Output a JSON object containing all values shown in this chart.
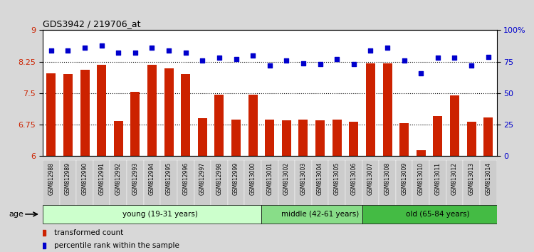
{
  "title": "GDS3942 / 219706_at",
  "samples": [
    "GSM812988",
    "GSM812989",
    "GSM812990",
    "GSM812991",
    "GSM812992",
    "GSM812993",
    "GSM812994",
    "GSM812995",
    "GSM812996",
    "GSM812997",
    "GSM812998",
    "GSM812999",
    "GSM813000",
    "GSM813001",
    "GSM813002",
    "GSM813003",
    "GSM813004",
    "GSM813005",
    "GSM813006",
    "GSM813007",
    "GSM813008",
    "GSM813009",
    "GSM813010",
    "GSM813011",
    "GSM813012",
    "GSM813013",
    "GSM813014"
  ],
  "bar_values": [
    7.98,
    7.96,
    8.06,
    8.18,
    6.84,
    7.53,
    8.17,
    8.1,
    7.95,
    6.9,
    7.47,
    6.88,
    7.46,
    6.88,
    6.85,
    6.88,
    6.85,
    6.88,
    6.82,
    8.22,
    8.22,
    6.79,
    6.15,
    6.95,
    7.45,
    6.82,
    6.92
  ],
  "percentile_values": [
    84,
    84,
    86,
    88,
    82,
    82,
    86,
    84,
    82,
    76,
    78,
    77,
    80,
    72,
    76,
    74,
    73,
    77,
    73,
    84,
    86,
    76,
    66,
    78,
    78,
    72,
    79
  ],
  "ylim_left": [
    6.0,
    9.0
  ],
  "ylim_right": [
    0,
    100
  ],
  "yticks_left": [
    6.0,
    6.75,
    7.5,
    8.25,
    9.0
  ],
  "ytick_labels_left": [
    "6",
    "6.75",
    "7.5",
    "8.25",
    "9"
  ],
  "yticks_right": [
    0,
    25,
    50,
    75,
    100
  ],
  "ytick_labels_right": [
    "0",
    "25",
    "50",
    "75",
    "100%"
  ],
  "hlines": [
    6.75,
    7.5,
    8.25
  ],
  "bar_color": "#cc2200",
  "dot_color": "#0000cc",
  "groups": [
    {
      "label": "young (19-31 years)",
      "start": 0,
      "end": 13,
      "color": "#ccffcc"
    },
    {
      "label": "middle (42-61 years)",
      "start": 13,
      "end": 19,
      "color": "#88dd88"
    },
    {
      "label": "old (65-84 years)",
      "start": 19,
      "end": 27,
      "color": "#44bb44"
    }
  ],
  "age_label": "age",
  "legend_bar_label": "transformed count",
  "legend_dot_label": "percentile rank within the sample",
  "bg_color": "#d8d8d8",
  "plot_bg_color": "#ffffff",
  "xtick_bg": "#cccccc"
}
